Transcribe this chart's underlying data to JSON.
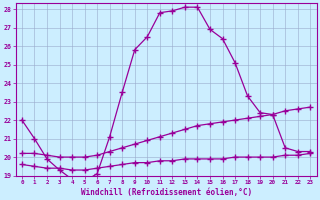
{
  "xlabel": "Windchill (Refroidissement éolien,°C)",
  "xlim": [
    -0.5,
    23.5
  ],
  "ylim": [
    19,
    28.3
  ],
  "yticks": [
    19,
    20,
    21,
    22,
    23,
    24,
    25,
    26,
    27,
    28
  ],
  "xticks": [
    0,
    1,
    2,
    3,
    4,
    5,
    6,
    7,
    8,
    9,
    10,
    11,
    12,
    13,
    14,
    15,
    16,
    17,
    18,
    19,
    20,
    21,
    22,
    23
  ],
  "bg_color": "#cceeff",
  "line_color": "#990099",
  "grid_color": "#99aacc",
  "series1_x": [
    0,
    1,
    2,
    3,
    4,
    5,
    6,
    7,
    8,
    9,
    10,
    11,
    12,
    13,
    14,
    15,
    16,
    17,
    18,
    19,
    20,
    21,
    22,
    23
  ],
  "series1_y": [
    22.0,
    21.0,
    19.9,
    19.3,
    18.8,
    18.7,
    19.1,
    21.1,
    23.5,
    25.8,
    26.5,
    27.8,
    27.9,
    28.1,
    28.1,
    26.9,
    26.4,
    25.1,
    23.3,
    22.4,
    22.3,
    20.5,
    20.3,
    20.3
  ],
  "series2_x": [
    0,
    1,
    2,
    3,
    4,
    5,
    6,
    7,
    8,
    9,
    10,
    11,
    12,
    13,
    14,
    15,
    16,
    17,
    18,
    19,
    20,
    21,
    22,
    23
  ],
  "series2_y": [
    20.2,
    20.2,
    20.1,
    20.0,
    20.0,
    20.0,
    20.1,
    20.3,
    20.5,
    20.7,
    20.9,
    21.1,
    21.3,
    21.5,
    21.7,
    21.8,
    21.9,
    22.0,
    22.1,
    22.2,
    22.3,
    22.5,
    22.6,
    22.7
  ],
  "series3_x": [
    0,
    1,
    2,
    3,
    4,
    5,
    6,
    7,
    8,
    9,
    10,
    11,
    12,
    13,
    14,
    15,
    16,
    17,
    18,
    19,
    20,
    21,
    22,
    23
  ],
  "series3_y": [
    19.6,
    19.5,
    19.4,
    19.4,
    19.3,
    19.3,
    19.4,
    19.5,
    19.6,
    19.7,
    19.7,
    19.8,
    19.8,
    19.9,
    19.9,
    19.9,
    19.9,
    20.0,
    20.0,
    20.0,
    20.0,
    20.1,
    20.1,
    20.2
  ]
}
